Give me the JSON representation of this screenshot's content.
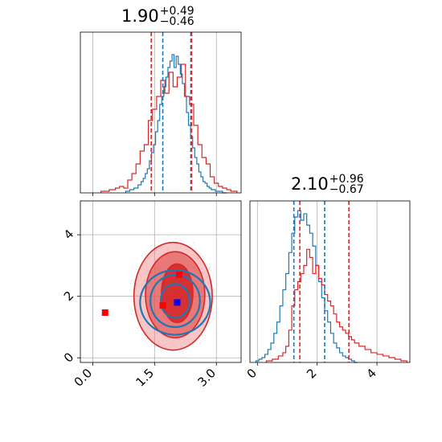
{
  "chart_data": [
    {
      "type": "histogram",
      "panel": "marginal-param-1",
      "title": {
        "median": "1.90",
        "plus": "+0.49",
        "minus": "−0.46"
      },
      "xlim": [
        -0.3,
        3.6
      ],
      "ylim": [
        0,
        1
      ],
      "grid": true,
      "series": [
        {
          "color": "#1f77b4",
          "x": [
            0.85,
            0.95,
            1.05,
            1.15,
            1.2,
            1.25,
            1.3,
            1.35,
            1.4,
            1.45,
            1.5,
            1.55,
            1.6,
            1.65,
            1.7,
            1.75,
            1.8,
            1.85,
            1.9,
            1.95,
            2.0,
            2.05,
            2.1,
            2.15,
            2.2,
            2.25,
            2.3,
            2.35,
            2.4,
            2.45,
            2.5,
            2.55,
            2.6,
            2.65,
            2.7,
            2.75,
            2.8,
            2.85,
            2.9,
            2.95,
            3.0,
            3.05,
            3.1,
            3.2
          ],
          "values": [
            0.01,
            0.02,
            0.03,
            0.05,
            0.07,
            0.09,
            0.12,
            0.15,
            0.2,
            0.25,
            0.3,
            0.38,
            0.45,
            0.55,
            0.6,
            0.66,
            0.72,
            0.78,
            0.82,
            0.86,
            0.78,
            0.85,
            0.8,
            0.74,
            0.68,
            0.6,
            0.5,
            0.42,
            0.35,
            0.28,
            0.22,
            0.18,
            0.13,
            0.1,
            0.07,
            0.06,
            0.04,
            0.03,
            0.02,
            0.02,
            0.01,
            0.01,
            0.01,
            0.0
          ]
        },
        {
          "color": "#d62728",
          "x": [
            0.3,
            0.5,
            0.6,
            0.7,
            0.8,
            0.9,
            1.0,
            1.1,
            1.2,
            1.3,
            1.4,
            1.5,
            1.6,
            1.7,
            1.8,
            1.9,
            2.0,
            2.1,
            2.2,
            2.3,
            2.4,
            2.5,
            2.6,
            2.7,
            2.8,
            2.9,
            3.0,
            3.1,
            3.2,
            3.3,
            3.4
          ],
          "values": [
            0.01,
            0.02,
            0.03,
            0.04,
            0.03,
            0.08,
            0.12,
            0.18,
            0.26,
            0.3,
            0.45,
            0.52,
            0.6,
            0.7,
            0.62,
            0.75,
            0.66,
            0.72,
            0.8,
            0.6,
            0.55,
            0.42,
            0.3,
            0.22,
            0.18,
            0.1,
            0.06,
            0.04,
            0.03,
            0.02,
            0.01
          ]
        }
      ],
      "quantile_lines": [
        {
          "x": 1.42,
          "color": "#d62728"
        },
        {
          "x": 1.7,
          "color": "#1f77b4"
        },
        {
          "x": 2.38,
          "color": "#1f77b4"
        },
        {
          "x": 2.4,
          "color": "#d62728"
        }
      ]
    },
    {
      "type": "histogram",
      "panel": "marginal-param-2",
      "title": {
        "median": "2.10",
        "plus": "+0.96",
        "minus": "−0.67"
      },
      "xlim": [
        -0.25,
        5.1
      ],
      "ylim": [
        0,
        1
      ],
      "grid": true,
      "xticks": [
        0,
        2,
        4
      ],
      "xticklabels": [
        "0",
        "2",
        "4"
      ],
      "series": [
        {
          "color": "#1f77b4",
          "x": [
            0.0,
            0.1,
            0.2,
            0.3,
            0.4,
            0.5,
            0.6,
            0.7,
            0.8,
            0.9,
            1.0,
            1.1,
            1.2,
            1.3,
            1.4,
            1.5,
            1.6,
            1.7,
            1.8,
            1.9,
            2.0,
            2.1,
            2.2,
            2.3,
            2.4,
            2.5,
            2.6,
            2.7,
            2.8,
            2.9,
            3.0,
            3.1,
            3.2,
            3.3
          ],
          "values": [
            0.01,
            0.02,
            0.03,
            0.05,
            0.08,
            0.12,
            0.18,
            0.25,
            0.35,
            0.45,
            0.55,
            0.68,
            0.8,
            0.9,
            0.94,
            0.88,
            0.92,
            0.85,
            0.8,
            0.72,
            0.6,
            0.5,
            0.4,
            0.32,
            0.25,
            0.18,
            0.12,
            0.09,
            0.06,
            0.04,
            0.03,
            0.02,
            0.01,
            0.0
          ]
        },
        {
          "color": "#d62728",
          "x": [
            0.4,
            0.6,
            0.8,
            0.9,
            1.0,
            1.1,
            1.2,
            1.3,
            1.4,
            1.5,
            1.6,
            1.7,
            1.8,
            1.9,
            2.0,
            2.1,
            2.2,
            2.3,
            2.4,
            2.5,
            2.6,
            2.7,
            2.8,
            2.9,
            3.0,
            3.1,
            3.2,
            3.3,
            3.5,
            3.7,
            3.9,
            4.1,
            4.3,
            4.5,
            4.7,
            4.9
          ],
          "values": [
            0.01,
            0.02,
            0.04,
            0.06,
            0.1,
            0.2,
            0.35,
            0.45,
            0.5,
            0.55,
            0.6,
            0.7,
            0.65,
            0.55,
            0.6,
            0.52,
            0.48,
            0.42,
            0.38,
            0.35,
            0.3,
            0.25,
            0.22,
            0.2,
            0.18,
            0.16,
            0.14,
            0.12,
            0.1,
            0.08,
            0.06,
            0.05,
            0.04,
            0.03,
            0.02,
            0.01
          ]
        }
      ],
      "quantile_lines": [
        {
          "x": 1.22,
          "color": "#1f77b4"
        },
        {
          "x": 1.42,
          "color": "#d62728"
        },
        {
          "x": 2.25,
          "color": "#1f77b4"
        },
        {
          "x": 3.06,
          "color": "#d62728"
        }
      ]
    },
    {
      "type": "contour",
      "panel": "joint-param-1-param-2",
      "xlim": [
        -0.3,
        3.6
      ],
      "ylim": [
        -0.15,
        5.1
      ],
      "grid": true,
      "xticks": [
        0.0,
        1.5,
        3.0
      ],
      "xticklabels": [
        "0.0",
        "1.5",
        "3.0"
      ],
      "yticks": [
        0,
        2,
        4
      ],
      "yticklabels": [
        "0",
        "2",
        "4"
      ],
      "red_contours": [
        {
          "cx": 2.05,
          "cy": 2.1,
          "rx": 0.38,
          "ry": 0.95,
          "fill": "#d62728",
          "opacity": 0.9
        },
        {
          "cx": 2.0,
          "cy": 2.05,
          "rx": 0.72,
          "ry": 1.4,
          "fill": "#e15050",
          "opacity": 0.65
        },
        {
          "cx": 1.95,
          "cy": 2.0,
          "rx": 0.95,
          "ry": 1.75,
          "fill": "#f08080",
          "opacity": 0.45
        }
      ],
      "blue_contours": [
        {
          "cx": 2.0,
          "cy": 1.85,
          "rx": 0.35,
          "ry": 0.55
        },
        {
          "cx": 2.0,
          "cy": 1.85,
          "rx": 0.6,
          "ry": 0.85
        },
        {
          "cx": 2.0,
          "cy": 1.8,
          "rx": 0.85,
          "ry": 1.05
        }
      ],
      "markers": [
        {
          "x": 0.3,
          "y": 1.47,
          "color": "#ff0000"
        },
        {
          "x": 1.7,
          "y": 1.7,
          "color": "#ff0000"
        },
        {
          "x": 2.1,
          "y": 2.7,
          "color": "#ff0000"
        },
        {
          "x": 2.05,
          "y": 1.8,
          "color": "#0000ff"
        }
      ]
    }
  ]
}
